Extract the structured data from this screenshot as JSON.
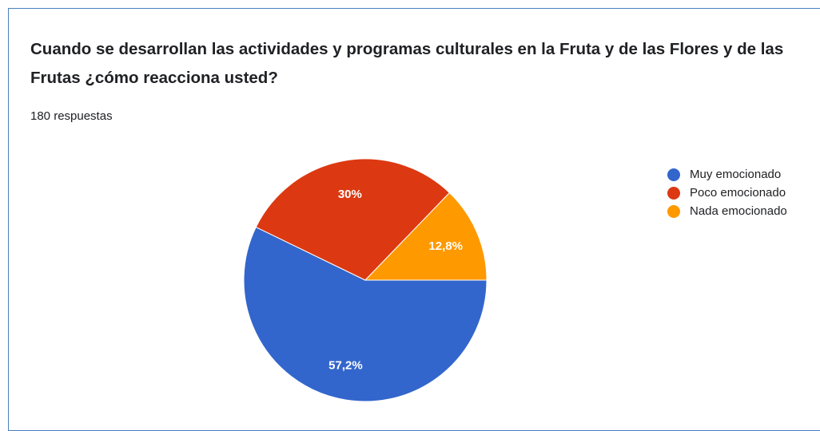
{
  "chart_data": {
    "type": "pie",
    "title": "Cuando se desarrollan las actividades y programas culturales en  la Fruta y de las Flores   y de las Frutas ¿cómo reacciona usted?",
    "subtitle": "180 respuestas",
    "categories": [
      "Muy emocionado",
      "Poco emocionado",
      "Nada emocionado"
    ],
    "values": [
      57.2,
      30,
      12.8
    ],
    "value_labels": [
      "57,2%",
      "30%",
      "12,8%"
    ],
    "colors": [
      "#3366cc",
      "#dc3912",
      "#ff9900"
    ],
    "legend_position": "right"
  }
}
